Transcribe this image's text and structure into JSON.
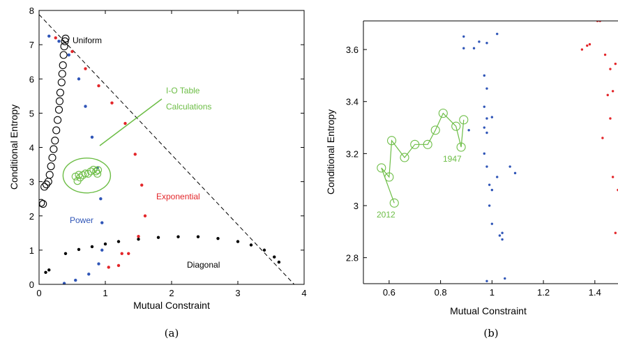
{
  "colors": {
    "power": "#2f55b7",
    "exponential": "#e3262a",
    "iot": "#6cbd45",
    "black": "#000000"
  },
  "chart_data": [
    {
      "id": "a",
      "type": "scatter",
      "caption": "(a)",
      "xlabel": "Mutual Constraint",
      "ylabel": "Conditional Entropy",
      "xlim": [
        0,
        4
      ],
      "ylim": [
        0,
        8
      ],
      "xticks": [
        "0",
        "1",
        "2",
        "3",
        "4"
      ],
      "yticks": [
        "0",
        "1",
        "2",
        "3",
        "4",
        "5",
        "6",
        "7",
        "8"
      ],
      "reference_line": {
        "style": "dashed",
        "from": [
          0,
          7.88
        ],
        "to": [
          3.85,
          0
        ]
      },
      "series": [
        {
          "name": "Uniform",
          "marker": "open-circle",
          "color": "#000000",
          "points": [
            [
              0.03,
              2.38
            ],
            [
              0.06,
              2.35
            ],
            [
              0.08,
              2.85
            ],
            [
              0.11,
              2.92
            ],
            [
              0.14,
              3.0
            ],
            [
              0.16,
              3.2
            ],
            [
              0.18,
              3.45
            ],
            [
              0.2,
              3.7
            ],
            [
              0.22,
              3.95
            ],
            [
              0.24,
              4.2
            ],
            [
              0.26,
              4.5
            ],
            [
              0.28,
              4.8
            ],
            [
              0.3,
              5.1
            ],
            [
              0.31,
              5.35
            ],
            [
              0.32,
              5.6
            ],
            [
              0.34,
              5.9
            ],
            [
              0.35,
              6.15
            ],
            [
              0.36,
              6.4
            ],
            [
              0.37,
              6.7
            ],
            [
              0.38,
              6.95
            ],
            [
              0.39,
              7.1
            ],
            [
              0.4,
              7.18
            ]
          ]
        },
        {
          "name": "Diagonal",
          "marker": "dot",
          "color": "#000000",
          "points": [
            [
              0.1,
              0.35
            ],
            [
              0.15,
              0.42
            ],
            [
              0.4,
              0.9
            ],
            [
              0.6,
              1.02
            ],
            [
              0.8,
              1.1
            ],
            [
              1.0,
              1.18
            ],
            [
              1.2,
              1.25
            ],
            [
              1.5,
              1.32
            ],
            [
              1.8,
              1.37
            ],
            [
              2.1,
              1.39
            ],
            [
              2.4,
              1.39
            ],
            [
              2.7,
              1.34
            ],
            [
              3.0,
              1.25
            ],
            [
              3.2,
              1.15
            ],
            [
              3.4,
              1.0
            ],
            [
              3.55,
              0.8
            ],
            [
              3.62,
              0.65
            ]
          ]
        },
        {
          "name": "Power",
          "marker": "dot",
          "color": "#2f55b7",
          "points": [
            [
              0.15,
              7.25
            ],
            [
              0.3,
              7.1
            ],
            [
              0.45,
              6.7
            ],
            [
              0.6,
              6.0
            ],
            [
              0.7,
              5.2
            ],
            [
              0.8,
              4.3
            ],
            [
              0.88,
              3.4
            ],
            [
              0.93,
              2.5
            ],
            [
              0.95,
              1.8
            ],
            [
              0.95,
              1.0
            ],
            [
              0.9,
              0.6
            ],
            [
              0.75,
              0.3
            ],
            [
              0.55,
              0.12
            ],
            [
              0.38,
              0.03
            ]
          ]
        },
        {
          "name": "Exponential",
          "marker": "dot",
          "color": "#e3262a",
          "points": [
            [
              0.25,
              7.2
            ],
            [
              0.5,
              6.8
            ],
            [
              0.7,
              6.3
            ],
            [
              0.9,
              5.8
            ],
            [
              1.1,
              5.3
            ],
            [
              1.3,
              4.7
            ],
            [
              1.45,
              3.8
            ],
            [
              1.55,
              2.9
            ],
            [
              1.6,
              2.0
            ],
            [
              1.5,
              1.4
            ],
            [
              1.35,
              0.9
            ],
            [
              1.2,
              0.55
            ],
            [
              1.05,
              0.5
            ],
            [
              1.25,
              0.9
            ]
          ]
        },
        {
          "name": "I-O Table Calculations",
          "marker": "open-circle",
          "color": "#6cbd45",
          "points": [
            [
              0.55,
              3.15
            ],
            [
              0.58,
              3.02
            ],
            [
              0.6,
              3.2
            ],
            [
              0.62,
              3.12
            ],
            [
              0.66,
              3.19
            ],
            [
              0.7,
              3.24
            ],
            [
              0.74,
              3.23
            ],
            [
              0.78,
              3.3
            ],
            [
              0.82,
              3.35
            ],
            [
              0.86,
              3.3
            ],
            [
              0.88,
              3.23
            ],
            [
              0.89,
              3.34
            ]
          ]
        }
      ],
      "annotations": [
        "Uniform",
        "I-O Table",
        "Calculations",
        "Exponential",
        "Power",
        "Diagonal"
      ]
    },
    {
      "id": "b",
      "type": "scatter",
      "caption": "(b)",
      "xlabel": "Mutual Constraint",
      "ylabel": "Conditional Entropy",
      "xlim": [
        0.5,
        1.49
      ],
      "ylim": [
        2.7,
        3.71
      ],
      "xticks": [
        "0.6",
        "0.8",
        "1",
        "1.2",
        "1.4"
      ],
      "yticks": [
        "2.8",
        "3",
        "3.2",
        "3.4",
        "3.6"
      ],
      "series": [
        {
          "name": "I-O Table Calculations",
          "marker": "open-circle-line",
          "color": "#6cbd45",
          "points": [
            [
              0.62,
              3.01
            ],
            [
              0.57,
              3.145
            ],
            [
              0.6,
              3.11
            ],
            [
              0.61,
              3.25
            ],
            [
              0.66,
              3.185
            ],
            [
              0.7,
              3.235
            ],
            [
              0.75,
              3.235
            ],
            [
              0.78,
              3.29
            ],
            [
              0.81,
              3.355
            ],
            [
              0.86,
              3.305
            ],
            [
              0.88,
              3.225
            ],
            [
              0.89,
              3.33
            ]
          ]
        },
        {
          "name": "Power",
          "marker": "dot",
          "color": "#2f55b7",
          "points": [
            [
              0.89,
              3.65
            ],
            [
              0.89,
              3.605
            ],
            [
              0.93,
              3.605
            ],
            [
              0.95,
              3.63
            ],
            [
              0.98,
              3.625
            ],
            [
              1.02,
              3.66
            ],
            [
              0.97,
              3.5
            ],
            [
              0.98,
              3.45
            ],
            [
              0.97,
              3.38
            ],
            [
              0.98,
              3.335
            ],
            [
              1.0,
              3.34
            ],
            [
              0.97,
              3.3
            ],
            [
              0.98,
              3.28
            ],
            [
              0.91,
              3.29
            ],
            [
              0.97,
              3.2
            ],
            [
              0.98,
              3.15
            ],
            [
              0.99,
              3.08
            ],
            [
              1.02,
              3.11
            ],
            [
              1.07,
              3.15
            ],
            [
              1.09,
              3.125
            ],
            [
              1.0,
              3.06
            ],
            [
              0.99,
              3.0
            ],
            [
              1.0,
              2.93
            ],
            [
              1.04,
              2.895
            ],
            [
              1.03,
              2.885
            ],
            [
              1.04,
              2.87
            ],
            [
              0.98,
              2.71
            ],
            [
              1.02,
              2.69
            ],
            [
              1.05,
              2.72
            ]
          ]
        },
        {
          "name": "Exponential",
          "marker": "dot",
          "color": "#e3262a",
          "points": [
            [
              1.35,
              3.6
            ],
            [
              1.37,
              3.615
            ],
            [
              1.38,
              3.62
            ],
            [
              1.41,
              3.71
            ],
            [
              1.42,
              3.71
            ],
            [
              1.44,
              3.58
            ],
            [
              1.46,
              3.525
            ],
            [
              1.48,
              3.545
            ],
            [
              1.45,
              3.425
            ],
            [
              1.47,
              3.44
            ],
            [
              1.43,
              3.26
            ],
            [
              1.46,
              3.335
            ],
            [
              1.47,
              3.11
            ],
            [
              1.49,
              3.06
            ],
            [
              1.48,
              2.895
            ]
          ]
        }
      ],
      "annotations": [
        "1947",
        "2012"
      ]
    }
  ]
}
